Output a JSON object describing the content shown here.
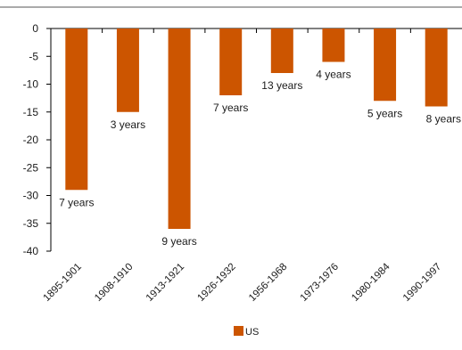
{
  "chart_data": {
    "type": "bar",
    "categories": [
      "1895-1901",
      "1908-1910",
      "1913-1921",
      "1926-1932",
      "1956-1968",
      "1973-1976",
      "1980-1984",
      "1990-1997"
    ],
    "series": [
      {
        "name": "US",
        "values": [
          -29,
          -15,
          -36,
          -12,
          -8,
          -6,
          -13,
          -14
        ]
      }
    ],
    "data_labels": [
      "7 years",
      "3 years",
      "9 years",
      "7 years",
      "13 years",
      "4 years",
      "5 years",
      "8 years"
    ],
    "ylim": [
      -40,
      0
    ],
    "yticks": [
      0,
      -5,
      -10,
      -15,
      -20,
      -25,
      -30,
      -35,
      -40
    ],
    "grid": false,
    "legend_position": "bottom",
    "colors": {
      "bar": "#cc5500",
      "axis": "#000000",
      "frame": "#555555"
    }
  }
}
